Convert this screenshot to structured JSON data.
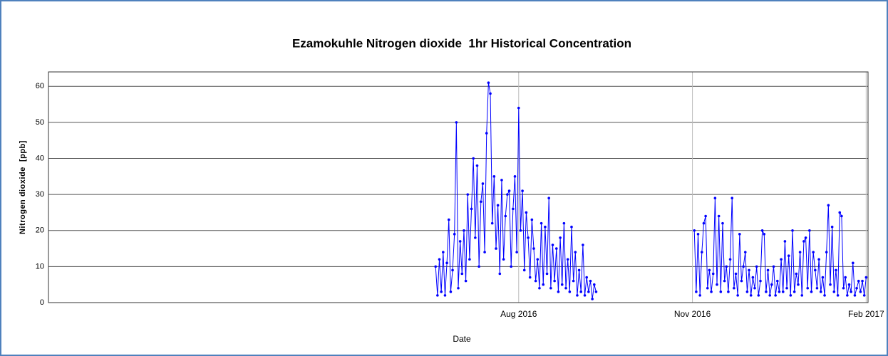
{
  "chart_data": {
    "type": "line",
    "title": "Ezamokuhle Nitrogen dioxide  1hr Historical Concentration",
    "x_label": "Date",
    "y_label": "Nitrogen dioxide  [ppb]",
    "xlim": [
      -249,
      185
    ],
    "xticks": [
      {
        "value": 0,
        "label": "Aug 2016"
      },
      {
        "value": 92,
        "label": "Nov 2016"
      },
      {
        "value": 184,
        "label": "Feb 2017"
      }
    ],
    "ylim": [
      0,
      64
    ],
    "yticks": [
      0,
      10,
      20,
      30,
      40,
      50,
      60
    ],
    "grid": true,
    "x": [
      -44,
      -43,
      -42,
      -41,
      -40,
      -39,
      -38,
      -37,
      -36,
      -35,
      -34,
      -33,
      -32,
      -31,
      -30,
      -29,
      -28,
      -27,
      -26,
      -25,
      -24,
      -23,
      -22,
      -21,
      -20,
      -19,
      -18,
      -17,
      -16,
      -15,
      -14,
      -13,
      -12,
      -11,
      -10,
      -9,
      -8,
      -7,
      -6,
      -5,
      -4,
      -3,
      -2,
      -1,
      0,
      1,
      2,
      3,
      4,
      5,
      6,
      7,
      8,
      9,
      10,
      11,
      12,
      13,
      14,
      15,
      16,
      17,
      18,
      19,
      20,
      21,
      22,
      23,
      24,
      25,
      26,
      27,
      28,
      29,
      30,
      31,
      32,
      33,
      34,
      35,
      36,
      37,
      38,
      39,
      40,
      41,
      67,
      93,
      94,
      95,
      96,
      97,
      98,
      99,
      100,
      101,
      102,
      103,
      104,
      105,
      106,
      107,
      108,
      109,
      110,
      111,
      112,
      113,
      114,
      115,
      116,
      117,
      118,
      119,
      120,
      121,
      122,
      123,
      124,
      125,
      126,
      127,
      128,
      129,
      130,
      131,
      132,
      133,
      134,
      135,
      136,
      137,
      138,
      139,
      140,
      141,
      142,
      143,
      144,
      145,
      146,
      147,
      148,
      149,
      150,
      151,
      152,
      153,
      154,
      155,
      156,
      157,
      158,
      159,
      160,
      161,
      162,
      163,
      164,
      165,
      166,
      167,
      168,
      169,
      170,
      171,
      172,
      173,
      174,
      175,
      176,
      177,
      178,
      179,
      180,
      181,
      182,
      183,
      184
    ],
    "series": [
      {
        "color": "#0000ff",
        "values": [
          10,
          2,
          12,
          3,
          14,
          2,
          11,
          23,
          3,
          9,
          19,
          50,
          4,
          17,
          8,
          20,
          6,
          30,
          12,
          26,
          40,
          18,
          38,
          10,
          28,
          33,
          14,
          47,
          61,
          58,
          22,
          35,
          15,
          27,
          8,
          34,
          12,
          24,
          30,
          31,
          10,
          26,
          35,
          14,
          54,
          20,
          31,
          9,
          25,
          18,
          7,
          23,
          15,
          6,
          12,
          4,
          22,
          5,
          21,
          8,
          29,
          4,
          16,
          6,
          15,
          3,
          18,
          5,
          22,
          4,
          12,
          3,
          21,
          6,
          14,
          2,
          9,
          3,
          16,
          2,
          7,
          3,
          6,
          1,
          5,
          3,
          null,
          20,
          3,
          19,
          2,
          14,
          22,
          24,
          4,
          9,
          3,
          8,
          29,
          5,
          24,
          3,
          22,
          6,
          10,
          3,
          12,
          29,
          4,
          8,
          2,
          19,
          6,
          10,
          14,
          3,
          9,
          2,
          7,
          4,
          10,
          2,
          6,
          20,
          19,
          3,
          9,
          2,
          5,
          10,
          2,
          6,
          3,
          12,
          3,
          17,
          4,
          13,
          2,
          20,
          3,
          8,
          5,
          14,
          2,
          17,
          18,
          4,
          20,
          3,
          14,
          9,
          4,
          12,
          3,
          7,
          2,
          14,
          27,
          5,
          21,
          3,
          9,
          2,
          25,
          24,
          4,
          7,
          2,
          5,
          3,
          11,
          2,
          4,
          6,
          3,
          6,
          2,
          7
        ]
      }
    ]
  }
}
